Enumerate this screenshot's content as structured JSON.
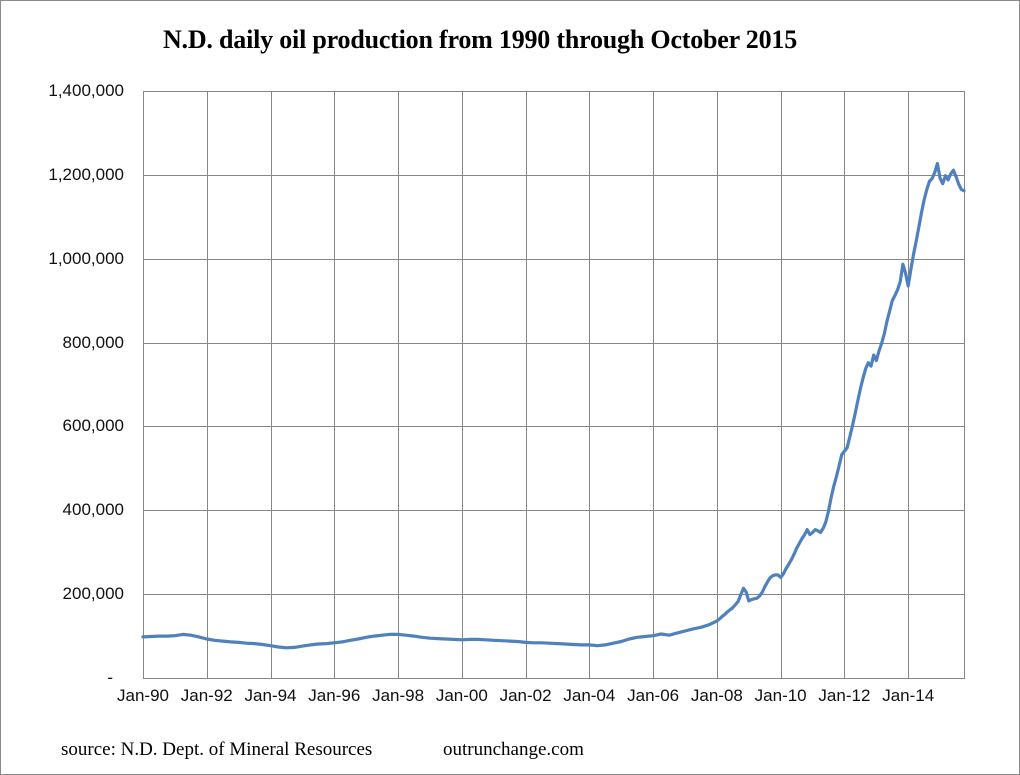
{
  "title": "N.D. daily oil production from 1990 through October 2015",
  "footer": {
    "source": "source: N.D. Dept. of Mineral Resources",
    "site": "outrunchange.com"
  },
  "chart_data": {
    "type": "line",
    "title": "N.D. daily oil production from 1990 through October 2015",
    "xlabel": "",
    "ylabel": "",
    "grid": true,
    "legend": "none",
    "line_color": "#4F81BD",
    "grid_color": "#878787",
    "ylim": [
      0,
      1400000
    ],
    "x_range_years": [
      1990,
      2015.75
    ],
    "y_ticks": [
      {
        "value": 0,
        "label": "-"
      },
      {
        "value": 200000,
        "label": "200,000"
      },
      {
        "value": 400000,
        "label": "400,000"
      },
      {
        "value": 600000,
        "label": "600,000"
      },
      {
        "value": 800000,
        "label": "800,000"
      },
      {
        "value": 1000000,
        "label": "1,000,000"
      },
      {
        "value": 1200000,
        "label": "1,200,000"
      },
      {
        "value": 1400000,
        "label": "1,400,000"
      }
    ],
    "x_ticks": [
      {
        "year": 1990,
        "label": "Jan-90"
      },
      {
        "year": 1992,
        "label": "Jan-92"
      },
      {
        "year": 1994,
        "label": "Jan-94"
      },
      {
        "year": 1996,
        "label": "Jan-96"
      },
      {
        "year": 1998,
        "label": "Jan-98"
      },
      {
        "year": 2000,
        "label": "Jan-00"
      },
      {
        "year": 2002,
        "label": "Jan-02"
      },
      {
        "year": 2004,
        "label": "Jan-04"
      },
      {
        "year": 2006,
        "label": "Jan-06"
      },
      {
        "year": 2008,
        "label": "Jan-08"
      },
      {
        "year": 2010,
        "label": "Jan-10"
      },
      {
        "year": 2012,
        "label": "Jan-12"
      },
      {
        "year": 2014,
        "label": "Jan-14"
      }
    ],
    "series": [
      {
        "points": [
          [
            1990.0,
            98000
          ],
          [
            1990.25,
            99000
          ],
          [
            1990.5,
            100000
          ],
          [
            1990.75,
            100000
          ],
          [
            1991.0,
            101000
          ],
          [
            1991.25,
            104000
          ],
          [
            1991.5,
            102000
          ],
          [
            1991.75,
            98000
          ],
          [
            1992.0,
            93000
          ],
          [
            1992.25,
            90000
          ],
          [
            1992.5,
            88000
          ],
          [
            1992.75,
            86000
          ],
          [
            1993.0,
            85000
          ],
          [
            1993.25,
            83000
          ],
          [
            1993.5,
            82000
          ],
          [
            1993.75,
            80000
          ],
          [
            1994.0,
            77000
          ],
          [
            1994.25,
            74000
          ],
          [
            1994.5,
            72000
          ],
          [
            1994.75,
            73000
          ],
          [
            1995.0,
            76000
          ],
          [
            1995.25,
            79000
          ],
          [
            1995.5,
            81000
          ],
          [
            1995.75,
            82000
          ],
          [
            1996.0,
            84000
          ],
          [
            1996.25,
            86000
          ],
          [
            1996.5,
            90000
          ],
          [
            1996.75,
            93000
          ],
          [
            1997.0,
            97000
          ],
          [
            1997.25,
            100000
          ],
          [
            1997.5,
            102000
          ],
          [
            1997.75,
            104000
          ],
          [
            1998.0,
            104000
          ],
          [
            1998.25,
            102000
          ],
          [
            1998.5,
            100000
          ],
          [
            1998.75,
            97000
          ],
          [
            1999.0,
            95000
          ],
          [
            1999.25,
            94000
          ],
          [
            1999.5,
            93000
          ],
          [
            1999.75,
            92000
          ],
          [
            2000.0,
            91000
          ],
          [
            2000.25,
            92000
          ],
          [
            2000.5,
            92000
          ],
          [
            2000.75,
            91000
          ],
          [
            2001.0,
            90000
          ],
          [
            2001.25,
            89000
          ],
          [
            2001.5,
            88000
          ],
          [
            2001.75,
            87000
          ],
          [
            2002.0,
            85000
          ],
          [
            2002.25,
            84000
          ],
          [
            2002.5,
            84000
          ],
          [
            2002.75,
            83000
          ],
          [
            2003.0,
            82000
          ],
          [
            2003.25,
            81000
          ],
          [
            2003.5,
            80000
          ],
          [
            2003.75,
            79000
          ],
          [
            2004.0,
            79000
          ],
          [
            2004.25,
            77000
          ],
          [
            2004.5,
            79000
          ],
          [
            2004.75,
            83000
          ],
          [
            2005.0,
            87000
          ],
          [
            2005.25,
            93000
          ],
          [
            2005.5,
            97000
          ],
          [
            2005.75,
            99000
          ],
          [
            2006.0,
            101000
          ],
          [
            2006.25,
            105000
          ],
          [
            2006.5,
            102000
          ],
          [
            2006.75,
            107000
          ],
          [
            2007.0,
            112000
          ],
          [
            2007.25,
            117000
          ],
          [
            2007.5,
            121000
          ],
          [
            2007.75,
            127000
          ],
          [
            2008.0,
            136000
          ],
          [
            2008.083,
            141000
          ],
          [
            2008.167,
            147000
          ],
          [
            2008.25,
            152000
          ],
          [
            2008.333,
            158000
          ],
          [
            2008.417,
            163000
          ],
          [
            2008.5,
            168000
          ],
          [
            2008.583,
            175000
          ],
          [
            2008.667,
            183000
          ],
          [
            2008.75,
            199000
          ],
          [
            2008.833,
            214000
          ],
          [
            2008.917,
            205000
          ],
          [
            2009.0,
            184000
          ],
          [
            2009.083,
            187000
          ],
          [
            2009.167,
            189000
          ],
          [
            2009.25,
            190000
          ],
          [
            2009.333,
            195000
          ],
          [
            2009.417,
            204000
          ],
          [
            2009.5,
            217000
          ],
          [
            2009.583,
            229000
          ],
          [
            2009.667,
            239000
          ],
          [
            2009.75,
            244000
          ],
          [
            2009.833,
            246000
          ],
          [
            2009.917,
            246000
          ],
          [
            2010.0,
            240000
          ],
          [
            2010.083,
            248000
          ],
          [
            2010.167,
            261000
          ],
          [
            2010.25,
            271000
          ],
          [
            2010.333,
            282000
          ],
          [
            2010.417,
            295000
          ],
          [
            2010.5,
            309000
          ],
          [
            2010.583,
            321000
          ],
          [
            2010.667,
            332000
          ],
          [
            2010.75,
            342000
          ],
          [
            2010.833,
            354000
          ],
          [
            2010.917,
            342000
          ],
          [
            2011.0,
            347000
          ],
          [
            2011.083,
            354000
          ],
          [
            2011.167,
            351000
          ],
          [
            2011.25,
            347000
          ],
          [
            2011.333,
            357000
          ],
          [
            2011.417,
            372000
          ],
          [
            2011.5,
            398000
          ],
          [
            2011.583,
            430000
          ],
          [
            2011.667,
            458000
          ],
          [
            2011.75,
            481000
          ],
          [
            2011.833,
            506000
          ],
          [
            2011.917,
            533000
          ],
          [
            2012.0,
            541000
          ],
          [
            2012.083,
            549000
          ],
          [
            2012.167,
            575000
          ],
          [
            2012.25,
            601000
          ],
          [
            2012.333,
            630000
          ],
          [
            2012.417,
            660000
          ],
          [
            2012.5,
            690000
          ],
          [
            2012.583,
            715000
          ],
          [
            2012.667,
            738000
          ],
          [
            2012.75,
            752000
          ],
          [
            2012.833,
            744000
          ],
          [
            2012.917,
            770000
          ],
          [
            2013.0,
            757000
          ],
          [
            2013.083,
            780000
          ],
          [
            2013.167,
            798000
          ],
          [
            2013.25,
            821000
          ],
          [
            2013.333,
            850000
          ],
          [
            2013.417,
            875000
          ],
          [
            2013.5,
            900000
          ],
          [
            2013.583,
            912000
          ],
          [
            2013.667,
            926000
          ],
          [
            2013.75,
            945000
          ],
          [
            2013.833,
            987000
          ],
          [
            2013.917,
            965000
          ],
          [
            2014.0,
            935000
          ],
          [
            2014.083,
            975000
          ],
          [
            2014.167,
            1010000
          ],
          [
            2014.25,
            1042000
          ],
          [
            2014.333,
            1075000
          ],
          [
            2014.417,
            1110000
          ],
          [
            2014.5,
            1140000
          ],
          [
            2014.583,
            1165000
          ],
          [
            2014.667,
            1185000
          ],
          [
            2014.75,
            1191000
          ],
          [
            2014.833,
            1206000
          ],
          [
            2014.917,
            1227000
          ],
          [
            2015.0,
            1192000
          ],
          [
            2015.083,
            1179000
          ],
          [
            2015.167,
            1198000
          ],
          [
            2015.25,
            1188000
          ],
          [
            2015.333,
            1202000
          ],
          [
            2015.417,
            1211000
          ],
          [
            2015.5,
            1196000
          ],
          [
            2015.583,
            1178000
          ],
          [
            2015.667,
            1165000
          ],
          [
            2015.75,
            1162000
          ]
        ]
      }
    ]
  }
}
